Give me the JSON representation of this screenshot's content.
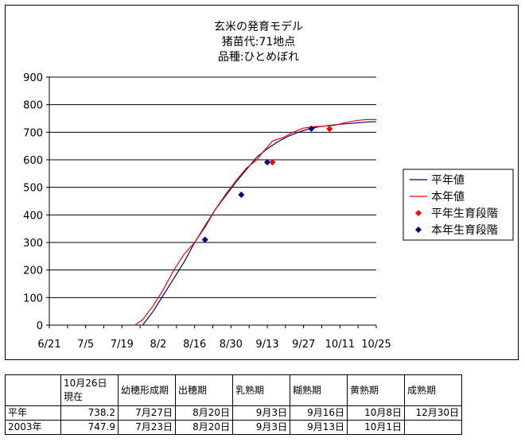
{
  "chart_data": {
    "type": "line",
    "title": [
      "玄米の発育モデル",
      "猪苗代:71地点",
      "品種:ひとめぼれ"
    ],
    "xlabel": "",
    "ylabel": "",
    "x_tick_labels": [
      "6/21",
      "7/5",
      "7/19",
      "8/2",
      "8/16",
      "8/30",
      "9/13",
      "9/27",
      "10/11",
      "10/25"
    ],
    "x_tick_days_from_jun21": [
      0,
      14,
      28,
      42,
      56,
      70,
      84,
      98,
      112,
      126
    ],
    "xlim_days_from_jun21": [
      0,
      126
    ],
    "ylim": [
      0,
      900
    ],
    "y_ticks": [
      0,
      100,
      200,
      300,
      400,
      500,
      600,
      700,
      800,
      900
    ],
    "grid": "horizontal",
    "legend_position": "right",
    "series": [
      {
        "name": "平年値",
        "color": "#000080",
        "kind": "line",
        "points": [
          [
            36,
            0
          ],
          [
            40,
            50
          ],
          [
            44,
            110
          ],
          [
            48,
            170
          ],
          [
            52,
            230
          ],
          [
            56,
            300
          ],
          [
            60,
            360
          ],
          [
            64,
            420
          ],
          [
            68,
            470
          ],
          [
            72,
            520
          ],
          [
            76,
            565
          ],
          [
            80,
            610
          ],
          [
            84,
            640
          ],
          [
            88,
            665
          ],
          [
            92,
            685
          ],
          [
            96,
            700
          ],
          [
            100,
            712
          ],
          [
            104,
            720
          ],
          [
            108,
            725
          ],
          [
            112,
            729
          ],
          [
            116,
            732
          ],
          [
            120,
            735
          ],
          [
            124,
            738
          ],
          [
            126,
            738
          ]
        ]
      },
      {
        "name": "本年値",
        "color": "#ff0000",
        "kind": "line",
        "points": [
          [
            33,
            0
          ],
          [
            36,
            20
          ],
          [
            40,
            70
          ],
          [
            44,
            130
          ],
          [
            48,
            200
          ],
          [
            52,
            258
          ],
          [
            56,
            300
          ],
          [
            60,
            355
          ],
          [
            64,
            420
          ],
          [
            68,
            475
          ],
          [
            72,
            525
          ],
          [
            76,
            570
          ],
          [
            80,
            600
          ],
          [
            82,
            625
          ],
          [
            84,
            645
          ],
          [
            86,
            668
          ],
          [
            88,
            675
          ],
          [
            90,
            680
          ],
          [
            94,
            700
          ],
          [
            98,
            715
          ],
          [
            102,
            720
          ],
          [
            106,
            722
          ],
          [
            110,
            725
          ],
          [
            114,
            735
          ],
          [
            118,
            742
          ],
          [
            122,
            746
          ],
          [
            126,
            746
          ]
        ]
      },
      {
        "name": "平年生育段階",
        "color": "#ff0000",
        "kind": "marker",
        "points": [
          [
            86,
            591
          ],
          [
            108,
            712
          ]
        ]
      },
      {
        "name": "本年生育段階",
        "color": "#000080",
        "kind": "marker",
        "points": [
          [
            60,
            310
          ],
          [
            74,
            473
          ],
          [
            84,
            591
          ],
          [
            101,
            713
          ]
        ]
      }
    ]
  },
  "table": {
    "headers": [
      "",
      "10月26日現在",
      "幼穂形成期",
      "出穂期",
      "乳熟期",
      "糊熟期",
      "黄熟期",
      "成熟期"
    ],
    "rows": [
      [
        "平年",
        "738.2",
        "7月27日",
        "8月20日",
        "9月3日",
        "9月16日",
        "10月8日",
        "12月30日"
      ],
      [
        "2003年",
        "747.9",
        "7月23日",
        "8月20日",
        "9月3日",
        "9月13日",
        "10月1日",
        ""
      ]
    ]
  }
}
